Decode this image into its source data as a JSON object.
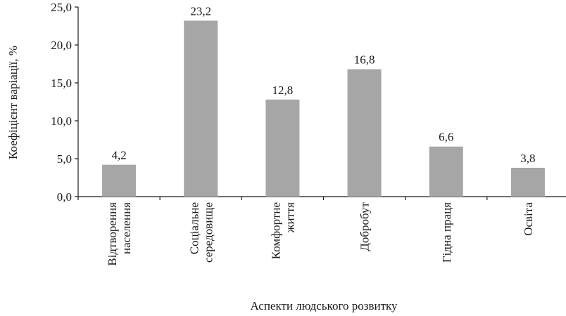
{
  "chart_data": {
    "type": "bar",
    "title": "",
    "xlabel": "Аспекти людського розвитку",
    "ylabel": "Коефіцієнт варіації, %",
    "ylim": [
      0,
      25
    ],
    "yticks": [
      "0,0",
      "5,0",
      "10,0",
      "15,0",
      "20,0",
      "25,0"
    ],
    "grid": false,
    "bar_color": "#a6a6a7",
    "categories": [
      [
        "Відтворення",
        "населення"
      ],
      [
        "Соціальне",
        "середовище"
      ],
      [
        "Комфортне",
        "життя"
      ],
      [
        "Добробут"
      ],
      [
        "Гідна праця"
      ],
      [
        "Освіта"
      ]
    ],
    "values": [
      4.2,
      23.2,
      12.8,
      16.8,
      6.6,
      3.8
    ],
    "value_labels": [
      "4,2",
      "23,2",
      "12,8",
      "16,8",
      "6,6",
      "3,8"
    ]
  }
}
